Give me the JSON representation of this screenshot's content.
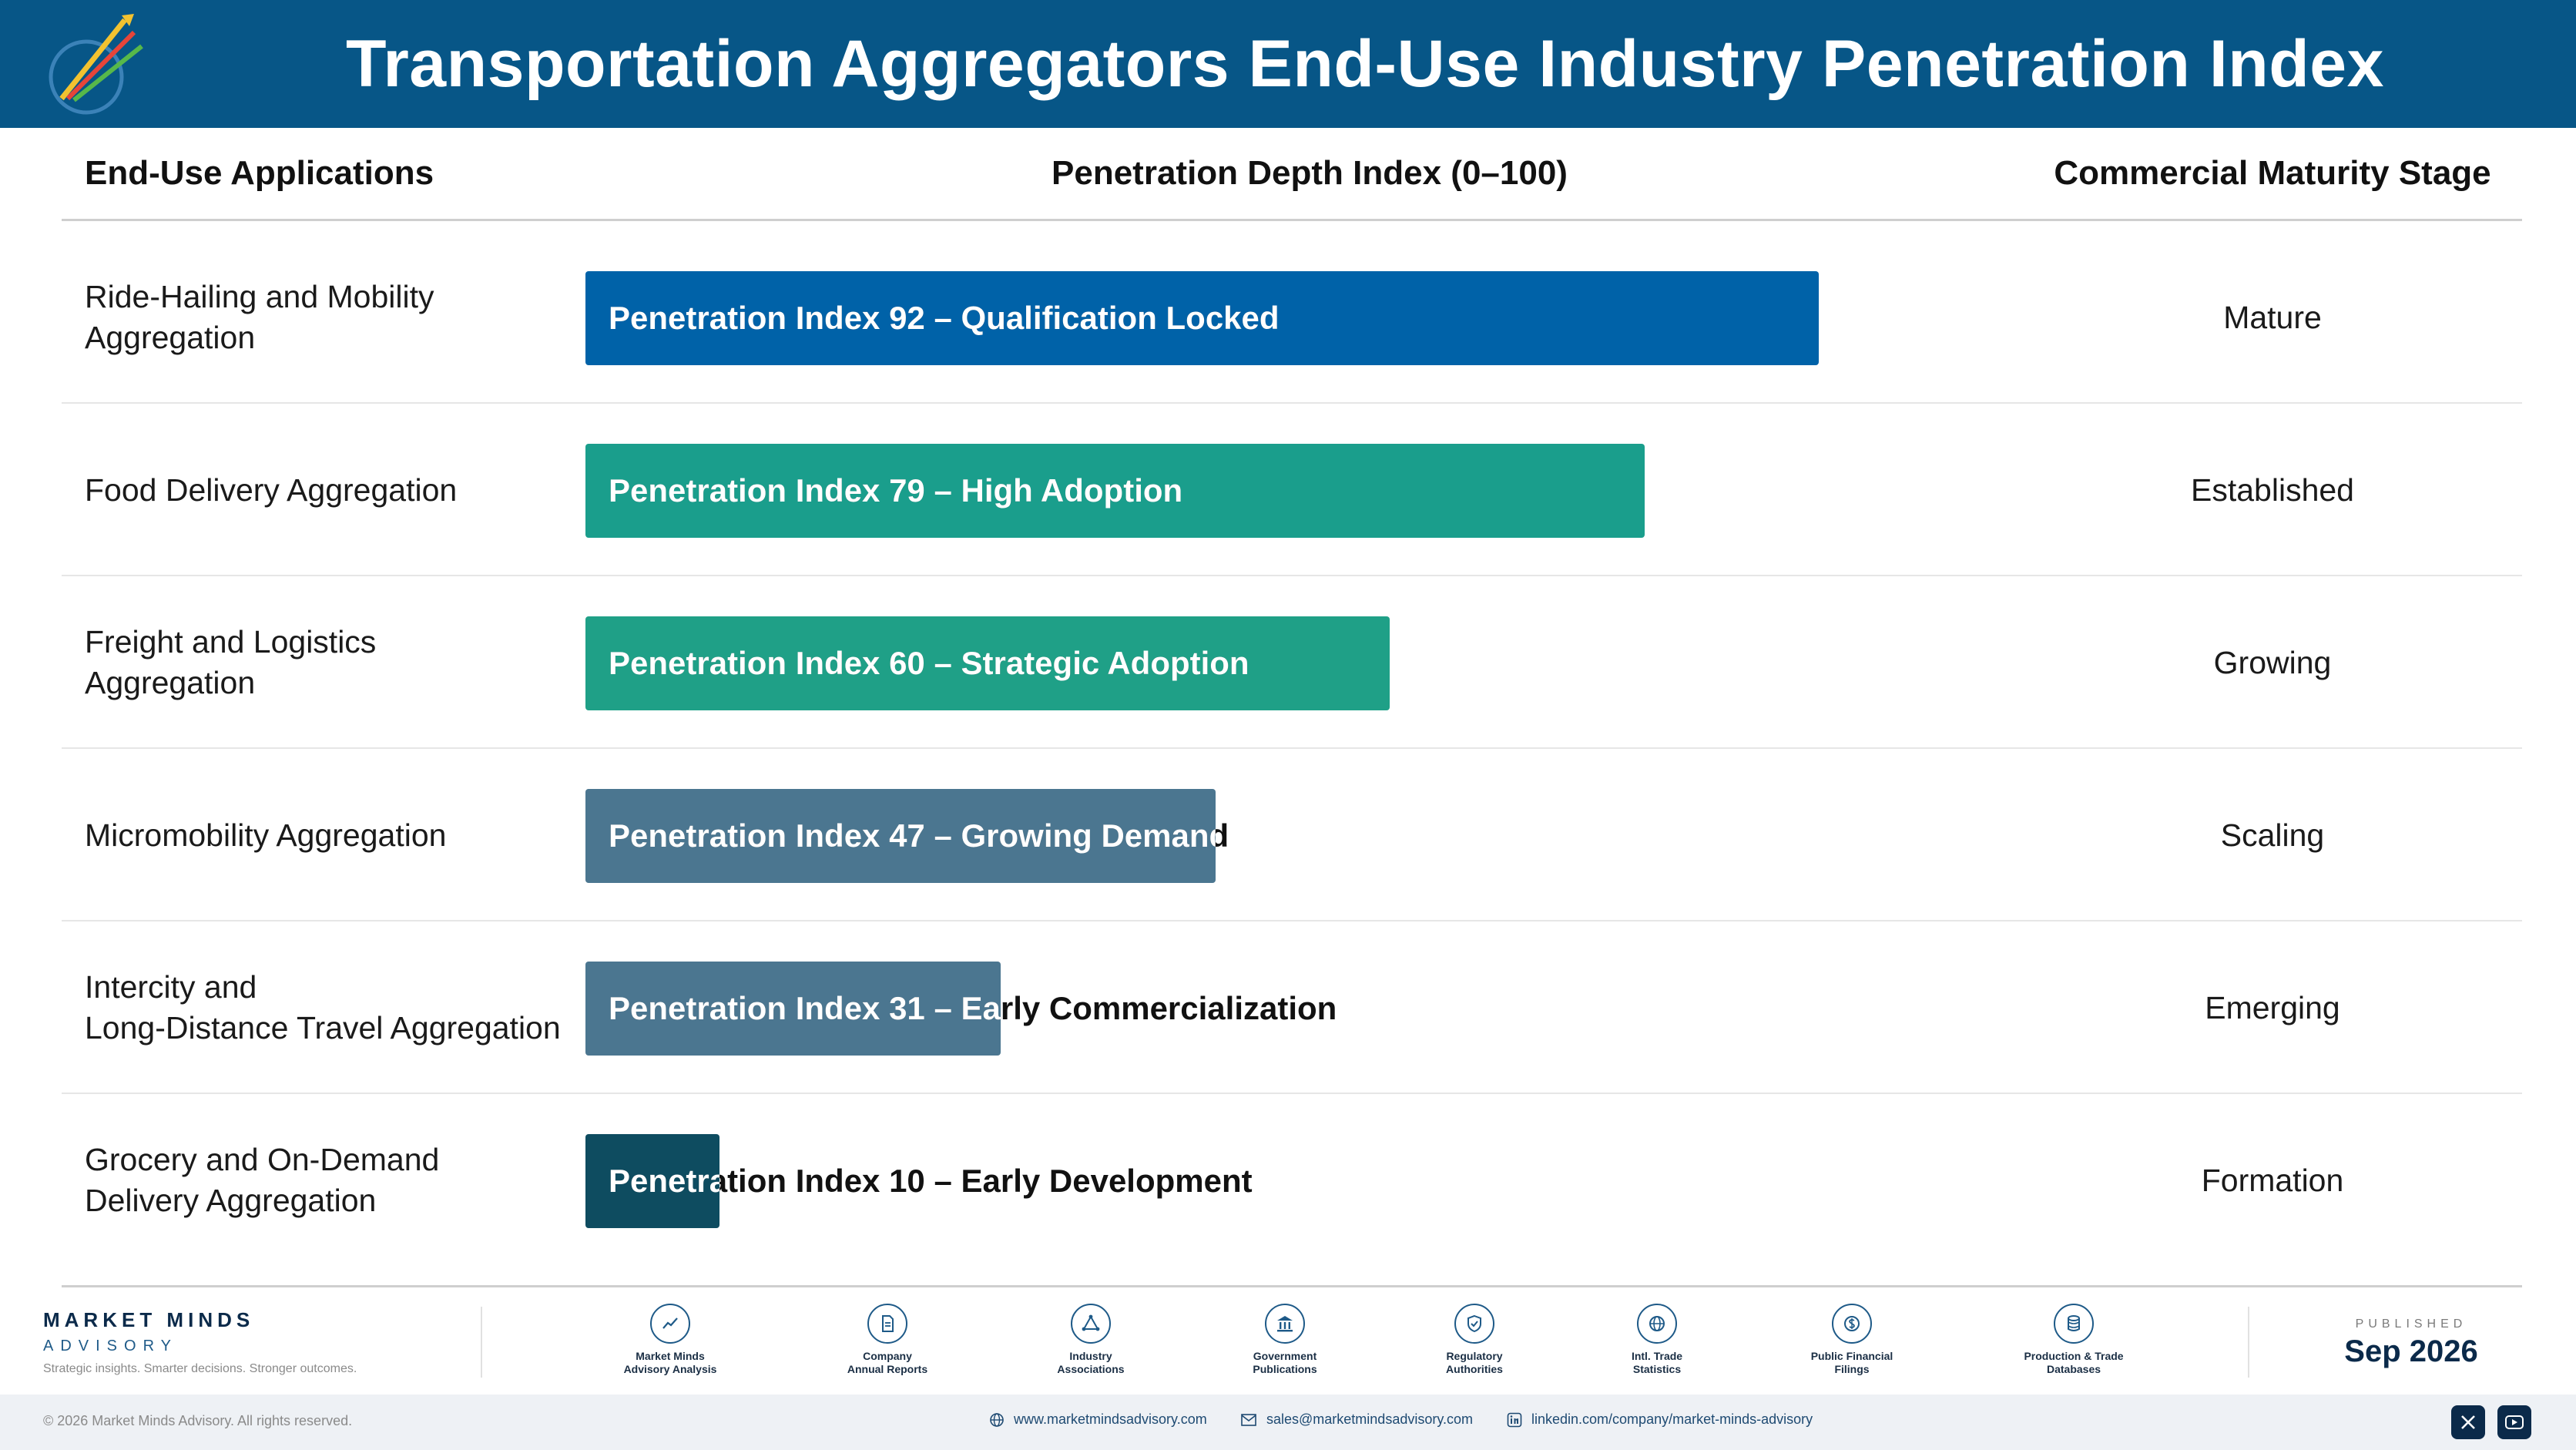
{
  "header": {
    "title": "Transportation Aggregators End-Use Industry Penetration Index"
  },
  "columns": {
    "applications": "End-Use Applications",
    "depth": "Penetration Depth Index (0–100)",
    "stage": "Commercial Maturity Stage"
  },
  "chart_data": {
    "type": "bar",
    "orientation": "horizontal",
    "title": "Transportation Aggregators End-Use Industry Penetration Index",
    "xlabel": "Penetration Depth Index (0–100)",
    "xlim": [
      0,
      100
    ],
    "categories": [
      "Ride-Hailing and Mobility\nAggregation",
      "Food Delivery Aggregation",
      "Freight and Logistics\nAggregation",
      "Micromobility Aggregation",
      "Intercity and\nLong-Distance Travel Aggregation",
      "Grocery and On-Demand\nDelivery Aggregation"
    ],
    "values": [
      92,
      79,
      60,
      47,
      31,
      10
    ],
    "bar_labels": [
      "Penetration Index 92 – Qualification Locked",
      "Penetration Index 79 – High Adoption",
      "Penetration Index 60 – Strategic Adoption",
      "Penetration Index 47 – Growing Demand",
      "Penetration Index 31 – Early Commercialization",
      "Penetration Index 10 – Early Development"
    ],
    "stages": [
      "Mature",
      "Established",
      "Growing",
      "Scaling",
      "Emerging",
      "Formation"
    ],
    "colors": [
      "#0062A8",
      "#1A9E8C",
      "#1FA087",
      "#4B7690",
      "#4B7690",
      "#0E4C60"
    ]
  },
  "footer": {
    "brand_name": "MARKET MINDS",
    "brand_sub": "ADVISORY",
    "tagline": "Strategic insights. Smarter decisions. Stronger outcomes.",
    "sources": [
      {
        "label": "Market Minds\nAdvisory Analysis",
        "icon": "trend-chart-icon"
      },
      {
        "label": "Company\nAnnual Reports",
        "icon": "document-icon"
      },
      {
        "label": "Industry\nAssociations",
        "icon": "network-icon"
      },
      {
        "label": "Government\nPublications",
        "icon": "government-building-icon"
      },
      {
        "label": "Regulatory\nAuthorities",
        "icon": "shield-icon"
      },
      {
        "label": "Intl. Trade\nStatistics",
        "icon": "globe-icon"
      },
      {
        "label": "Public Financial\nFilings",
        "icon": "dollar-coin-icon"
      },
      {
        "label": "Production & Trade\nDatabases",
        "icon": "database-icon"
      }
    ],
    "published_label": "PUBLISHED",
    "published_date": "Sep 2026",
    "copyright": "© 2026 Market Minds Advisory. All rights reserved.",
    "website": "www.marketmindsadvisory.com",
    "email": "sales@marketmindsadvisory.com",
    "linkedin": "linkedin.com/company/market-minds-advisory"
  }
}
